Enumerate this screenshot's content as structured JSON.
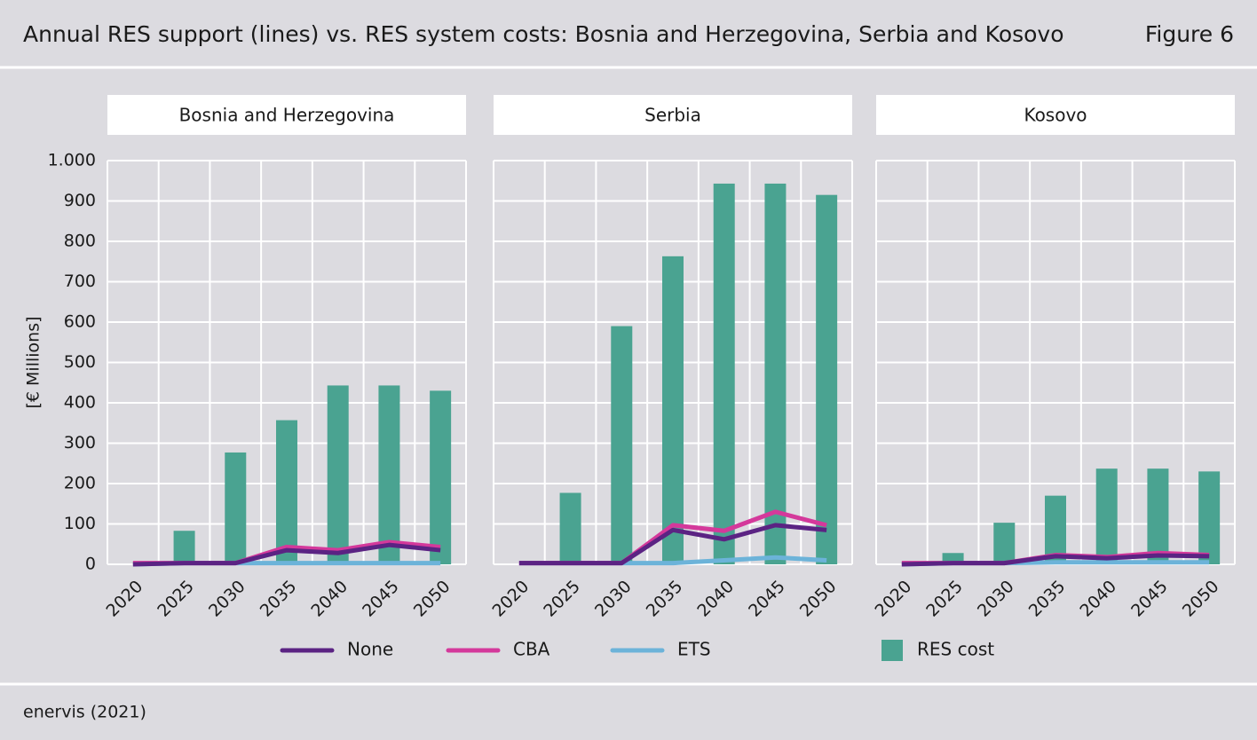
{
  "title": "Annual RES support (lines) vs. RES system costs: Bosnia and Herzegovina, Serbia and Kosovo",
  "figure_label": "Figure 6",
  "source": "enervis (2021)",
  "chart_data": [
    {
      "type": "combo",
      "title": "Bosnia and Herzegovina",
      "y_label": "[€ Millions]",
      "categories": [
        "2020",
        "2025",
        "2030",
        "2035",
        "2040",
        "2045",
        "2050"
      ],
      "ylim": [
        0,
        1000
      ],
      "yticks": [
        0,
        100,
        200,
        300,
        400,
        500,
        600,
        700,
        800,
        900,
        {
          "value": 1000,
          "label": "1.000"
        }
      ],
      "grid": true,
      "series": [
        {
          "name": "None",
          "type": "line",
          "color": "#5b2383",
          "values": [
            0,
            3,
            3,
            35,
            28,
            48,
            35
          ]
        },
        {
          "name": "CBA",
          "type": "line",
          "color": "#d4399b",
          "values": [
            3,
            3,
            3,
            43,
            35,
            55,
            43
          ]
        },
        {
          "name": "ETS",
          "type": "line",
          "color": "#6cb3d9",
          "values": [
            0,
            3,
            3,
            3,
            3,
            3,
            3
          ]
        },
        {
          "name": "RES cost",
          "type": "bar",
          "color": "#4aa391",
          "values": [
            0,
            83,
            277,
            357,
            443,
            443,
            430
          ]
        }
      ]
    },
    {
      "type": "combo",
      "title": "Serbia",
      "categories": [
        "2020",
        "2025",
        "2030",
        "2035",
        "2040",
        "2045",
        "2050"
      ],
      "ylim": [
        0,
        1000
      ],
      "yticks": [
        0,
        100,
        200,
        300,
        400,
        500,
        600,
        700,
        800,
        900,
        1000
      ],
      "grid": true,
      "series": [
        {
          "name": "None",
          "type": "line",
          "color": "#5b2383",
          "values": [
            3,
            3,
            3,
            85,
            62,
            97,
            85
          ]
        },
        {
          "name": "CBA",
          "type": "line",
          "color": "#d4399b",
          "values": [
            3,
            3,
            3,
            97,
            83,
            130,
            97
          ]
        },
        {
          "name": "ETS",
          "type": "line",
          "color": "#6cb3d9",
          "values": [
            3,
            3,
            3,
            3,
            10,
            17,
            10
          ]
        },
        {
          "name": "RES cost",
          "type": "bar",
          "color": "#4aa391",
          "values": [
            0,
            177,
            590,
            763,
            943,
            943,
            915
          ]
        }
      ]
    },
    {
      "type": "combo",
      "title": "Kosovo",
      "categories": [
        "2020",
        "2025",
        "2030",
        "2035",
        "2040",
        "2045",
        "2050"
      ],
      "ylim": [
        0,
        1000
      ],
      "yticks": [
        0,
        100,
        200,
        300,
        400,
        500,
        600,
        700,
        800,
        900,
        1000
      ],
      "grid": true,
      "series": [
        {
          "name": "None",
          "type": "line",
          "color": "#5b2383",
          "values": [
            0,
            3,
            3,
            20,
            15,
            22,
            20
          ]
        },
        {
          "name": "CBA",
          "type": "line",
          "color": "#d4399b",
          "values": [
            3,
            3,
            3,
            23,
            18,
            28,
            23
          ]
        },
        {
          "name": "ETS",
          "type": "line",
          "color": "#6cb3d9",
          "values": [
            0,
            3,
            3,
            5,
            5,
            5,
            5
          ]
        },
        {
          "name": "RES cost",
          "type": "bar",
          "color": "#4aa391",
          "values": [
            0,
            28,
            103,
            170,
            237,
            237,
            230
          ]
        }
      ]
    }
  ]
}
